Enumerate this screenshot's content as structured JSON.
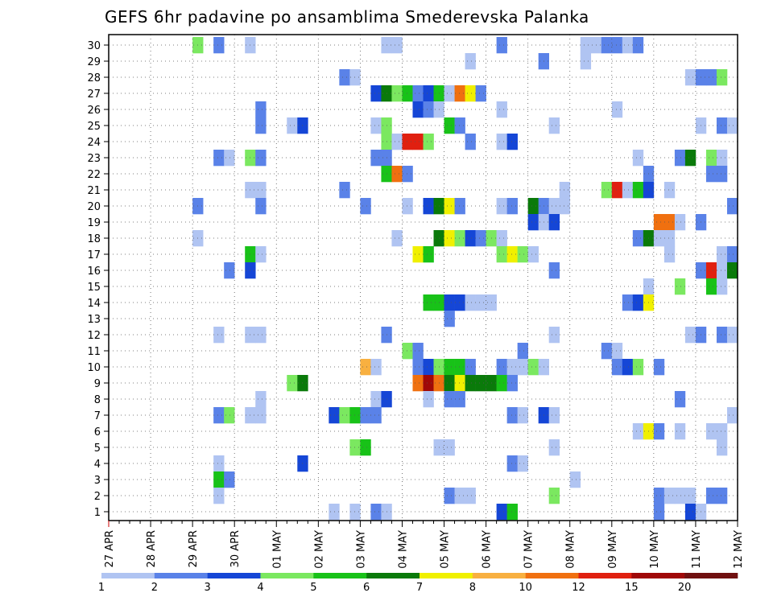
{
  "chart_data": {
    "type": "heatmap",
    "title": "GEFS 6hr padavine po ansamblima Smederevska Palanka",
    "x_tick_labels": [
      "27 APR",
      "28 APR",
      "29 APR",
      "30 APR",
      "01 MAY",
      "02 MAY",
      "03 MAY",
      "04 MAY",
      "05 MAY",
      "06 MAY",
      "07 MAY",
      "08 MAY",
      "09 MAY",
      "10 MAY",
      "11 MAY",
      "12 MAY"
    ],
    "y_tick_labels": [
      "1",
      "2",
      "3",
      "4",
      "5",
      "6",
      "7",
      "8",
      "9",
      "10",
      "11",
      "12",
      "13",
      "14",
      "15",
      "16",
      "17",
      "18",
      "19",
      "20",
      "21",
      "22",
      "23",
      "24",
      "25",
      "26",
      "27",
      "28",
      "29",
      "30"
    ],
    "n_steps": 60,
    "n_members": 30,
    "steps_per_day": 4,
    "grid": true,
    "legend": {
      "position": "bottom",
      "labels": [
        "1",
        "2",
        "3",
        "4",
        "5",
        "6",
        "7",
        "8",
        "10",
        "12",
        "15",
        "20"
      ],
      "colors": [
        "#b0c4f2",
        "#5a82e8",
        "#1546d6",
        "#7be860",
        "#18c218",
        "#0a7a0a",
        "#f0f000",
        "#f8b040",
        "#f07010",
        "#e02010",
        "#a00808",
        "#701010"
      ]
    },
    "cells": [
      [
        30,
        8,
        4
      ],
      [
        30,
        10,
        2
      ],
      [
        30,
        13,
        1
      ],
      [
        30,
        26,
        1
      ],
      [
        30,
        27,
        1
      ],
      [
        30,
        37,
        2
      ],
      [
        30,
        45,
        1
      ],
      [
        30,
        46,
        1
      ],
      [
        30,
        47,
        2
      ],
      [
        30,
        48,
        2
      ],
      [
        30,
        49,
        1
      ],
      [
        30,
        50,
        2
      ],
      [
        29,
        34,
        1
      ],
      [
        29,
        41,
        2
      ],
      [
        29,
        45,
        1
      ],
      [
        28,
        22,
        2
      ],
      [
        28,
        23,
        1
      ],
      [
        28,
        55,
        1
      ],
      [
        28,
        56,
        2
      ],
      [
        28,
        57,
        2
      ],
      [
        28,
        58,
        4
      ],
      [
        27,
        25,
        3
      ],
      [
        27,
        26,
        6
      ],
      [
        27,
        27,
        4
      ],
      [
        27,
        28,
        5
      ],
      [
        27,
        29,
        2
      ],
      [
        27,
        30,
        3
      ],
      [
        27,
        31,
        5
      ],
      [
        27,
        32,
        9
      ],
      [
        27,
        33,
        10
      ],
      [
        27,
        34,
        7
      ],
      [
        27,
        35,
        2
      ],
      [
        26,
        14,
        2
      ],
      [
        26,
        29,
        3
      ],
      [
        26,
        30,
        2
      ],
      [
        26,
        31,
        1
      ],
      [
        26,
        37,
        1
      ],
      [
        26,
        48,
        1
      ],
      [
        25,
        14,
        2
      ],
      [
        25,
        17,
        1
      ],
      [
        25,
        18,
        3
      ],
      [
        25,
        25,
        1
      ],
      [
        25,
        26,
        4
      ],
      [
        25,
        32,
        5
      ],
      [
        25,
        33,
        2
      ],
      [
        25,
        42,
        1
      ],
      [
        25,
        56,
        1
      ],
      [
        25,
        58,
        2
      ],
      [
        25,
        59,
        1
      ],
      [
        24,
        26,
        4
      ],
      [
        24,
        27,
        9
      ],
      [
        24,
        28,
        12
      ],
      [
        24,
        29,
        12
      ],
      [
        24,
        30,
        4
      ],
      [
        24,
        34,
        2
      ],
      [
        24,
        37,
        1
      ],
      [
        24,
        38,
        3
      ],
      [
        23,
        10,
        2
      ],
      [
        23,
        11,
        1
      ],
      [
        23,
        13,
        4
      ],
      [
        23,
        14,
        2
      ],
      [
        23,
        25,
        2
      ],
      [
        23,
        26,
        2
      ],
      [
        23,
        50,
        1
      ],
      [
        23,
        54,
        2
      ],
      [
        23,
        55,
        6
      ],
      [
        23,
        57,
        4
      ],
      [
        23,
        58,
        9
      ],
      [
        22,
        26,
        5
      ],
      [
        22,
        27,
        10
      ],
      [
        22,
        28,
        2
      ],
      [
        22,
        51,
        2
      ],
      [
        22,
        57,
        2
      ],
      [
        22,
        58,
        2
      ],
      [
        21,
        13,
        1
      ],
      [
        21,
        14,
        1
      ],
      [
        21,
        22,
        2
      ],
      [
        21,
        43,
        1
      ],
      [
        21,
        47,
        4
      ],
      [
        21,
        48,
        12
      ],
      [
        21,
        49,
        1
      ],
      [
        21,
        50,
        5
      ],
      [
        21,
        51,
        3
      ],
      [
        21,
        53,
        1
      ],
      [
        20,
        8,
        2
      ],
      [
        20,
        14,
        2
      ],
      [
        20,
        24,
        2
      ],
      [
        20,
        28,
        1
      ],
      [
        20,
        30,
        3
      ],
      [
        20,
        31,
        6
      ],
      [
        20,
        32,
        7
      ],
      [
        20,
        33,
        2
      ],
      [
        20,
        37,
        1
      ],
      [
        20,
        38,
        2
      ],
      [
        20,
        40,
        6
      ],
      [
        20,
        41,
        2
      ],
      [
        20,
        42,
        1
      ],
      [
        20,
        43,
        1
      ],
      [
        20,
        59,
        2
      ],
      [
        19,
        40,
        3
      ],
      [
        19,
        41,
        11
      ],
      [
        19,
        42,
        3
      ],
      [
        19,
        52,
        10
      ],
      [
        19,
        53,
        10
      ],
      [
        19,
        54,
        11
      ],
      [
        19,
        56,
        2
      ],
      [
        18,
        8,
        1
      ],
      [
        18,
        27,
        1
      ],
      [
        18,
        31,
        6
      ],
      [
        18,
        32,
        7
      ],
      [
        18,
        33,
        4
      ],
      [
        18,
        34,
        3
      ],
      [
        18,
        35,
        2
      ],
      [
        18,
        36,
        4
      ],
      [
        18,
        37,
        1
      ],
      [
        18,
        50,
        2
      ],
      [
        18,
        51,
        6
      ],
      [
        18,
        52,
        9
      ],
      [
        18,
        53,
        1
      ],
      [
        17,
        13,
        5
      ],
      [
        17,
        14,
        1
      ],
      [
        17,
        29,
        7
      ],
      [
        17,
        30,
        5
      ],
      [
        17,
        37,
        4
      ],
      [
        17,
        38,
        7
      ],
      [
        17,
        39,
        4
      ],
      [
        17,
        40,
        1
      ],
      [
        17,
        53,
        1
      ],
      [
        17,
        58,
        1
      ],
      [
        17,
        59,
        2
      ],
      [
        16,
        11,
        2
      ],
      [
        16,
        13,
        3
      ],
      [
        16,
        42,
        2
      ],
      [
        16,
        56,
        2
      ],
      [
        16,
        57,
        12
      ],
      [
        16,
        58,
        9
      ],
      [
        16,
        59,
        6
      ],
      [
        15,
        51,
        1
      ],
      [
        15,
        54,
        4
      ],
      [
        15,
        57,
        5
      ],
      [
        15,
        58,
        1
      ],
      [
        14,
        30,
        5
      ],
      [
        14,
        31,
        5
      ],
      [
        14,
        32,
        3
      ],
      [
        14,
        33,
        3
      ],
      [
        14,
        34,
        1
      ],
      [
        14,
        35,
        1
      ],
      [
        14,
        36,
        1
      ],
      [
        14,
        49,
        2
      ],
      [
        14,
        50,
        3
      ],
      [
        14,
        51,
        7
      ],
      [
        13,
        32,
        2
      ],
      [
        12,
        10,
        1
      ],
      [
        12,
        13,
        1
      ],
      [
        12,
        14,
        1
      ],
      [
        12,
        26,
        2
      ],
      [
        12,
        42,
        1
      ],
      [
        12,
        55,
        1
      ],
      [
        12,
        56,
        2
      ],
      [
        12,
        58,
        2
      ],
      [
        12,
        59,
        1
      ],
      [
        11,
        28,
        4
      ],
      [
        11,
        29,
        2
      ],
      [
        11,
        39,
        2
      ],
      [
        11,
        47,
        2
      ],
      [
        11,
        48,
        1
      ],
      [
        10,
        24,
        8
      ],
      [
        10,
        25,
        1
      ],
      [
        10,
        29,
        2
      ],
      [
        10,
        30,
        3
      ],
      [
        10,
        31,
        4
      ],
      [
        10,
        32,
        5
      ],
      [
        10,
        33,
        5
      ],
      [
        10,
        34,
        2
      ],
      [
        10,
        37,
        2
      ],
      [
        10,
        38,
        1
      ],
      [
        10,
        39,
        1
      ],
      [
        10,
        40,
        4
      ],
      [
        10,
        41,
        1
      ],
      [
        10,
        48,
        2
      ],
      [
        10,
        49,
        3
      ],
      [
        10,
        50,
        4
      ],
      [
        10,
        52,
        2
      ],
      [
        9,
        17,
        4
      ],
      [
        9,
        18,
        6
      ],
      [
        9,
        29,
        10
      ],
      [
        9,
        30,
        15
      ],
      [
        9,
        31,
        10
      ],
      [
        9,
        32,
        6
      ],
      [
        9,
        33,
        7
      ],
      [
        9,
        34,
        6
      ],
      [
        9,
        35,
        6
      ],
      [
        9,
        36,
        6
      ],
      [
        9,
        37,
        5
      ],
      [
        9,
        38,
        2
      ],
      [
        8,
        14,
        1
      ],
      [
        8,
        25,
        1
      ],
      [
        8,
        26,
        3
      ],
      [
        8,
        30,
        1
      ],
      [
        8,
        32,
        2
      ],
      [
        8,
        33,
        2
      ],
      [
        8,
        54,
        2
      ],
      [
        7,
        10,
        2
      ],
      [
        7,
        11,
        4
      ],
      [
        7,
        13,
        1
      ],
      [
        7,
        14,
        1
      ],
      [
        7,
        21,
        3
      ],
      [
        7,
        22,
        4
      ],
      [
        7,
        23,
        5
      ],
      [
        7,
        24,
        2
      ],
      [
        7,
        25,
        2
      ],
      [
        7,
        38,
        2
      ],
      [
        7,
        39,
        1
      ],
      [
        7,
        41,
        3
      ],
      [
        7,
        42,
        1
      ],
      [
        7,
        59,
        1
      ],
      [
        6,
        50,
        1
      ],
      [
        6,
        51,
        7
      ],
      [
        6,
        52,
        2
      ],
      [
        6,
        54,
        1
      ],
      [
        6,
        57,
        1
      ],
      [
        6,
        58,
        1
      ],
      [
        5,
        23,
        4
      ],
      [
        5,
        24,
        5
      ],
      [
        5,
        31,
        1
      ],
      [
        5,
        32,
        1
      ],
      [
        5,
        42,
        1
      ],
      [
        5,
        58,
        1
      ],
      [
        4,
        10,
        1
      ],
      [
        4,
        18,
        3
      ],
      [
        4,
        38,
        2
      ],
      [
        4,
        39,
        1
      ],
      [
        3,
        10,
        5
      ],
      [
        3,
        11,
        2
      ],
      [
        3,
        44,
        1
      ],
      [
        2,
        10,
        1
      ],
      [
        2,
        32,
        2
      ],
      [
        2,
        33,
        1
      ],
      [
        2,
        34,
        1
      ],
      [
        2,
        42,
        4
      ],
      [
        2,
        52,
        2
      ],
      [
        2,
        53,
        1
      ],
      [
        2,
        54,
        1
      ],
      [
        2,
        55,
        1
      ],
      [
        2,
        57,
        2
      ],
      [
        2,
        58,
        2
      ],
      [
        1,
        21,
        1
      ],
      [
        1,
        23,
        1
      ],
      [
        1,
        25,
        2
      ],
      [
        1,
        26,
        1
      ],
      [
        1,
        37,
        3
      ],
      [
        1,
        38,
        5
      ],
      [
        1,
        52,
        2
      ],
      [
        1,
        55,
        3
      ],
      [
        1,
        56,
        1
      ]
    ]
  }
}
